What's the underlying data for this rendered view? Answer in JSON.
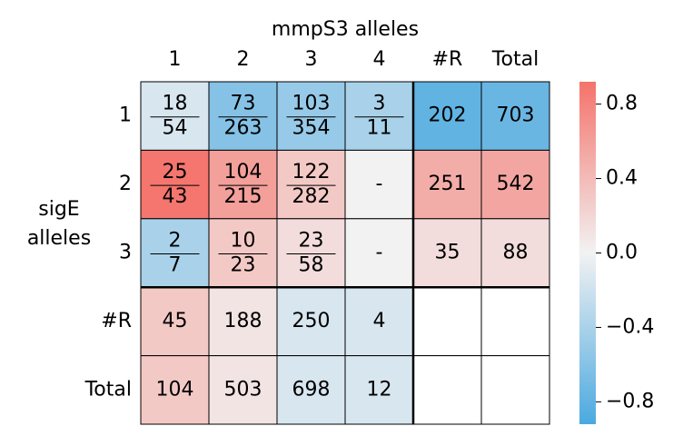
{
  "chart_data": {
    "type": "heatmap",
    "x_label": "mmpS3 alleles",
    "y_label": "sigE alleles",
    "columns": [
      "1",
      "2",
      "3",
      "4",
      "#R",
      "Total"
    ],
    "rows": [
      "1",
      "2",
      "3",
      "#R",
      "Total"
    ],
    "values": [
      [
        -0.15,
        -0.6,
        -0.5,
        -0.4,
        -0.8,
        -0.75
      ],
      [
        0.9,
        0.6,
        0.3,
        0,
        0.5,
        0.55
      ],
      [
        -0.4,
        0.3,
        0.15,
        0,
        0.15,
        0.15
      ],
      [
        0.3,
        0.1,
        -0.15,
        -0.15,
        null,
        null
      ],
      [
        0.3,
        0.1,
        -0.15,
        -0.15,
        null,
        null
      ]
    ],
    "labels": [
      [
        [
          "18",
          "54"
        ],
        [
          "73",
          "263"
        ],
        [
          "103",
          "354"
        ],
        [
          "3",
          "11"
        ],
        [
          "202"
        ],
        [
          "703"
        ]
      ],
      [
        [
          "25",
          "43"
        ],
        [
          "104",
          "215"
        ],
        [
          "122",
          "282"
        ],
        [
          "-"
        ],
        [
          "251"
        ],
        [
          "542"
        ]
      ],
      [
        [
          "2",
          "7"
        ],
        [
          "10",
          "23"
        ],
        [
          "23",
          "58"
        ],
        [
          "-"
        ],
        [
          "35"
        ],
        [
          "88"
        ]
      ],
      [
        [
          "45"
        ],
        [
          "188"
        ],
        [
          "250"
        ],
        [
          "4"
        ],
        null,
        null
      ],
      [
        [
          "104"
        ],
        [
          "503"
        ],
        [
          "698"
        ],
        [
          "12"
        ],
        null,
        null
      ]
    ],
    "colormap": [
      "#4ba9e0",
      "#f2f2f2",
      "#f4736b"
    ],
    "zlim": [
      -0.92,
      0.92
    ],
    "zticks": [
      0.8,
      0.4,
      {
        "value": 0,
        "label": "0.0"
      },
      {
        "value": -0.4,
        "label": "−0.4"
      },
      {
        "value": -0.8,
        "label": "−0.8"
      }
    ]
  }
}
